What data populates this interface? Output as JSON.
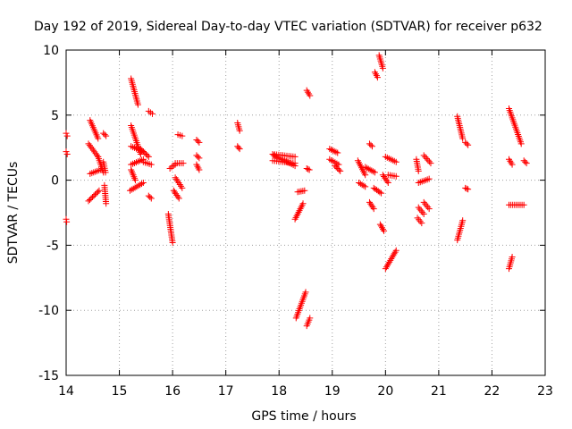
{
  "chart_data": {
    "type": "scatter",
    "title": "Day 192 of 2019, Sidereal Day-to-day VTEC variation (SDTVAR) for receiver p632",
    "xlabel": "GPS time / hours",
    "ylabel": "SDTVAR / TECUs",
    "xlim": [
      14,
      23
    ],
    "ylim": [
      -15,
      10
    ],
    "x_ticks": [
      14,
      15,
      16,
      17,
      18,
      19,
      20,
      21,
      22,
      23
    ],
    "y_ticks": [
      -15,
      -10,
      -5,
      0,
      5,
      10
    ],
    "x_tick_labels": [
      "14",
      "15",
      "16",
      "17",
      "18",
      "19",
      "20",
      "21",
      "22",
      "23"
    ],
    "y_tick_labels": [
      "-15",
      "-10",
      "-5",
      "0",
      "5",
      "10"
    ],
    "grid": true,
    "marker": "+",
    "color": "#ff0000",
    "segments": [
      {
        "x": [
          14.0,
          14.02
        ],
        "y": [
          3.6,
          3.4
        ]
      },
      {
        "x": [
          14.0,
          14.02
        ],
        "y": [
          2.2,
          2.0
        ]
      },
      {
        "x": [
          14.0,
          14.01
        ],
        "y": [
          -3.0,
          -3.2
        ]
      },
      {
        "x": [
          14.45,
          14.6
        ],
        "y": [
          4.6,
          3.2
        ]
      },
      {
        "x": [
          14.42,
          14.6
        ],
        "y": [
          2.8,
          1.8
        ]
      },
      {
        "x": [
          14.45,
          14.65
        ],
        "y": [
          0.5,
          0.8
        ]
      },
      {
        "x": [
          14.42,
          14.62
        ],
        "y": [
          -1.6,
          -0.8
        ]
      },
      {
        "x": [
          14.6,
          14.7
        ],
        "y": [
          1.8,
          0.6
        ]
      },
      {
        "x": [
          14.7,
          14.75
        ],
        "y": [
          3.6,
          3.4
        ]
      },
      {
        "x": [
          14.7,
          14.74
        ],
        "y": [
          1.4,
          0.6
        ]
      },
      {
        "x": [
          14.72,
          14.75
        ],
        "y": [
          -0.4,
          -1.8
        ]
      },
      {
        "x": [
          15.22,
          15.35
        ],
        "y": [
          7.8,
          5.8
        ]
      },
      {
        "x": [
          15.22,
          15.4
        ],
        "y": [
          4.2,
          2.0
        ]
      },
      {
        "x": [
          15.22,
          15.45
        ],
        "y": [
          2.6,
          2.2
        ]
      },
      {
        "x": [
          15.22,
          15.45
        ],
        "y": [
          1.2,
          1.6
        ]
      },
      {
        "x": [
          15.22,
          15.3
        ],
        "y": [
          0.8,
          0.0
        ]
      },
      {
        "x": [
          15.2,
          15.45
        ],
        "y": [
          -0.8,
          -0.2
        ]
      },
      {
        "x": [
          15.4,
          15.55
        ],
        "y": [
          2.4,
          1.8
        ]
      },
      {
        "x": [
          15.45,
          15.6
        ],
        "y": [
          1.4,
          1.2
        ]
      },
      {
        "x": [
          15.55,
          15.62
        ],
        "y": [
          5.3,
          5.1
        ]
      },
      {
        "x": [
          15.55,
          15.6
        ],
        "y": [
          -1.2,
          -1.4
        ]
      },
      {
        "x": [
          15.92,
          16.0
        ],
        "y": [
          -2.6,
          -4.8
        ]
      },
      {
        "x": [
          15.95,
          16.05
        ],
        "y": [
          0.9,
          1.2
        ]
      },
      {
        "x": [
          16.02,
          16.12
        ],
        "y": [
          -0.8,
          -1.4
        ]
      },
      {
        "x": [
          16.05,
          16.18
        ],
        "y": [
          0.2,
          -0.6
        ]
      },
      {
        "x": [
          16.05,
          16.2
        ],
        "y": [
          1.3,
          1.3
        ]
      },
      {
        "x": [
          16.1,
          16.18
        ],
        "y": [
          3.5,
          3.4
        ]
      },
      {
        "x": [
          16.45,
          16.5
        ],
        "y": [
          3.1,
          2.9
        ]
      },
      {
        "x": [
          16.45,
          16.5
        ],
        "y": [
          1.9,
          1.7
        ]
      },
      {
        "x": [
          16.45,
          16.5
        ],
        "y": [
          1.2,
          0.8
        ]
      },
      {
        "x": [
          17.22,
          17.26
        ],
        "y": [
          4.4,
          3.8
        ]
      },
      {
        "x": [
          17.22,
          17.26
        ],
        "y": [
          2.6,
          2.4
        ]
      },
      {
        "x": [
          17.88,
          18.3
        ],
        "y": [
          2.0,
          1.8
        ]
      },
      {
        "x": [
          17.88,
          18.3
        ],
        "y": [
          1.5,
          1.3
        ]
      },
      {
        "x": [
          17.9,
          18.3
        ],
        "y": [
          1.9,
          1.1
        ]
      },
      {
        "x": [
          18.3,
          18.45
        ],
        "y": [
          -3.0,
          -1.8
        ]
      },
      {
        "x": [
          18.35,
          18.48
        ],
        "y": [
          -0.9,
          -0.8
        ]
      },
      {
        "x": [
          18.32,
          18.5
        ],
        "y": [
          -10.6,
          -8.6
        ]
      },
      {
        "x": [
          18.52,
          18.58
        ],
        "y": [
          -11.2,
          -10.6
        ]
      },
      {
        "x": [
          18.52,
          18.58
        ],
        "y": [
          6.9,
          6.5
        ]
      },
      {
        "x": [
          18.52,
          18.57
        ],
        "y": [
          0.9,
          0.8
        ]
      },
      {
        "x": [
          18.95,
          19.1
        ],
        "y": [
          2.4,
          2.1
        ]
      },
      {
        "x": [
          18.95,
          19.12
        ],
        "y": [
          1.6,
          1.2
        ]
      },
      {
        "x": [
          19.05,
          19.15
        ],
        "y": [
          1.1,
          0.7
        ]
      },
      {
        "x": [
          19.48,
          19.62
        ],
        "y": [
          1.5,
          0.4
        ]
      },
      {
        "x": [
          19.5,
          19.62
        ],
        "y": [
          -0.2,
          -0.5
        ]
      },
      {
        "x": [
          19.62,
          19.8
        ],
        "y": [
          1.0,
          0.6
        ]
      },
      {
        "x": [
          19.7,
          19.75
        ],
        "y": [
          2.8,
          2.6
        ]
      },
      {
        "x": [
          19.7,
          19.78
        ],
        "y": [
          -1.7,
          -2.2
        ]
      },
      {
        "x": [
          19.78,
          19.92
        ],
        "y": [
          -0.6,
          -1.0
        ]
      },
      {
        "x": [
          19.8,
          19.85
        ],
        "y": [
          8.3,
          7.9
        ]
      },
      {
        "x": [
          19.88,
          19.95
        ],
        "y": [
          9.6,
          8.6
        ]
      },
      {
        "x": [
          19.9,
          19.97
        ],
        "y": [
          -3.4,
          -3.9
        ]
      },
      {
        "x": [
          19.95,
          20.05
        ],
        "y": [
          0.4,
          -0.2
        ]
      },
      {
        "x": [
          20.0,
          20.2
        ],
        "y": [
          1.8,
          1.4
        ]
      },
      {
        "x": [
          20.0,
          20.2
        ],
        "y": [
          -6.8,
          -5.4
        ]
      },
      {
        "x": [
          20.05,
          20.2
        ],
        "y": [
          0.4,
          0.3
        ]
      },
      {
        "x": [
          20.58,
          20.62
        ],
        "y": [
          1.6,
          0.7
        ]
      },
      {
        "x": [
          20.62,
          20.82
        ],
        "y": [
          -0.2,
          0.1
        ]
      },
      {
        "x": [
          20.6,
          20.68
        ],
        "y": [
          -2.9,
          -3.3
        ]
      },
      {
        "x": [
          20.62,
          20.72
        ],
        "y": [
          -2.1,
          -2.6
        ]
      },
      {
        "x": [
          20.72,
          20.82
        ],
        "y": [
          -1.7,
          -2.2
        ]
      },
      {
        "x": [
          20.72,
          20.85
        ],
        "y": [
          1.9,
          1.3
        ]
      },
      {
        "x": [
          21.35,
          21.45
        ],
        "y": [
          4.9,
          3.2
        ]
      },
      {
        "x": [
          21.35,
          21.45
        ],
        "y": [
          -4.6,
          -3.1
        ]
      },
      {
        "x": [
          21.5,
          21.55
        ],
        "y": [
          2.9,
          2.7
        ]
      },
      {
        "x": [
          21.5,
          21.55
        ],
        "y": [
          -0.6,
          -0.7
        ]
      },
      {
        "x": [
          22.32,
          22.55
        ],
        "y": [
          5.5,
          2.8
        ]
      },
      {
        "x": [
          22.32,
          22.38
        ],
        "y": [
          1.6,
          1.2
        ]
      },
      {
        "x": [
          22.32,
          22.38
        ],
        "y": [
          -6.8,
          -5.9
        ]
      },
      {
        "x": [
          22.32,
          22.6
        ],
        "y": [
          -1.9,
          -1.9
        ]
      },
      {
        "x": [
          22.6,
          22.65
        ],
        "y": [
          1.5,
          1.3
        ]
      }
    ]
  }
}
